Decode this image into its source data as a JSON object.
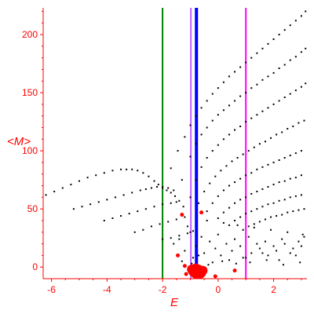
{
  "chart_data": {
    "type": "scatter",
    "xlabel": "E",
    "ylabel": "<M>",
    "xlim": [
      -6.3,
      3.2
    ],
    "ylim": [
      -10,
      223
    ],
    "x_ticks": [
      -6,
      -4,
      -2,
      0,
      2
    ],
    "y_ticks": [
      0,
      50,
      100,
      150,
      200
    ],
    "tick_labels": {
      "x": [
        "-6",
        "-4",
        "-2",
        "0",
        "2"
      ],
      "y": [
        "0",
        "50",
        "100",
        "150",
        "200"
      ]
    },
    "colors": {
      "axes": "#ff0000",
      "points": "#000000",
      "highlight_points": "#ff0000",
      "green_line": "#008000",
      "blue_line": "#0000ff",
      "magenta_line": "#ff00ff",
      "violet_line": "#c060ff"
    },
    "vertical_lines": [
      {
        "x": -2.0,
        "color": "#008000"
      },
      {
        "x": -0.98,
        "color": "#c060ff"
      },
      {
        "x": -0.78,
        "color": "#0000ff"
      },
      {
        "x": 1.0,
        "color": "#ff00ff"
      }
    ],
    "series": [
      {
        "color": "#000000",
        "x": [
          -6.2,
          -5.9,
          -5.6,
          -5.3,
          -5.0,
          -4.7,
          -4.4,
          -4.1,
          -3.8,
          -3.5,
          -3.3,
          -3.1,
          -2.9,
          -2.7,
          -2.5,
          -2.3,
          -2.15,
          -2.0,
          -1.85,
          -1.7,
          -1.55,
          -1.4,
          -1.25
        ],
        "y": [
          62,
          65,
          68,
          71,
          74,
          77,
          79,
          81,
          83,
          84,
          84,
          84,
          83,
          81,
          78,
          74,
          71,
          68,
          66,
          64,
          61,
          57,
          52
        ]
      },
      {
        "color": "#000000",
        "x": [
          -5.2,
          -4.9,
          -4.6,
          -4.3,
          -4.0,
          -3.7,
          -3.4,
          -3.1,
          -2.8,
          -2.6,
          -2.4,
          -2.2,
          -2.0,
          -1.8,
          -1.6
        ],
        "y": [
          50,
          52,
          54,
          56,
          58,
          60,
          62,
          64,
          66,
          67,
          68,
          69,
          69,
          68,
          66
        ]
      },
      {
        "color": "#000000",
        "x": [
          -4.1,
          -3.8,
          -3.5,
          -3.2,
          -2.9,
          -2.6,
          -2.3,
          -2.0,
          -1.7,
          -1.5
        ],
        "y": [
          40,
          42,
          44,
          46,
          48,
          50,
          52,
          54,
          55,
          56
        ]
      },
      {
        "color": "#000000",
        "x": [
          -3.0,
          -2.7,
          -2.4,
          -2.1,
          -1.8,
          -1.5,
          -1.2
        ],
        "y": [
          30,
          32,
          35,
          37,
          39,
          41,
          43
        ]
      },
      {
        "color": "#000000",
        "x": [
          -2.0,
          -1.7,
          -1.4,
          -1.1,
          -0.9
        ],
        "y": [
          24,
          25,
          27,
          29,
          31
        ]
      },
      {
        "color": "#000000",
        "x": [
          -1.7,
          -1.45,
          -1.2,
          -1.0,
          -0.8,
          -0.6,
          -0.4,
          -0.2,
          0.0,
          0.2,
          0.4,
          0.6,
          0.8,
          1.0,
          1.2,
          1.4,
          1.6,
          1.8,
          2.0,
          2.2,
          2.4,
          2.6,
          2.8,
          3.0,
          3.15
        ],
        "y": [
          85,
          100,
          112,
          122,
          130,
          137,
          143,
          149,
          154,
          159,
          164,
          168,
          172,
          176,
          180,
          184,
          188,
          192,
          196,
          200,
          204,
          208,
          212,
          216,
          220
        ]
      },
      {
        "color": "#000000",
        "x": [
          -1.3,
          -1.0,
          -0.8,
          -0.6,
          -0.4,
          -0.2,
          0.0,
          0.2,
          0.4,
          0.6,
          0.8,
          1.0,
          1.2,
          1.4,
          1.6,
          1.8,
          2.0,
          2.2,
          2.4,
          2.6,
          2.8,
          3.0,
          3.15
        ],
        "y": [
          75,
          95,
          106,
          114,
          120,
          126,
          131,
          135,
          139,
          143,
          147,
          150,
          154,
          157,
          161,
          164,
          167,
          171,
          174,
          178,
          181,
          185,
          188
        ]
      },
      {
        "color": "#000000",
        "x": [
          -1.0,
          -0.8,
          -0.6,
          -0.4,
          -0.2,
          0.0,
          0.2,
          0.4,
          0.6,
          0.8,
          1.0,
          1.2,
          1.4,
          1.6,
          1.8,
          2.0,
          2.2,
          2.4,
          2.6,
          2.8,
          3.0,
          3.15
        ],
        "y": [
          60,
          75,
          86,
          94,
          100,
          105,
          110,
          114,
          118,
          121,
          125,
          128,
          131,
          134,
          137,
          140,
          143,
          146,
          149,
          152,
          155,
          158
        ]
      },
      {
        "color": "#000000",
        "x": [
          -0.7,
          -0.5,
          -0.3,
          -0.1,
          0.1,
          0.3,
          0.5,
          0.7,
          0.9,
          1.1,
          1.3,
          1.5,
          1.7,
          1.9,
          2.1,
          2.3,
          2.5,
          2.7,
          2.9,
          3.1
        ],
        "y": [
          55,
          65,
          72,
          78,
          83,
          87,
          91,
          94,
          97,
          100,
          103,
          106,
          108,
          111,
          114,
          116,
          119,
          121,
          124,
          126
        ]
      },
      {
        "color": "#000000",
        "x": [
          -0.4,
          -0.2,
          0.0,
          0.2,
          0.4,
          0.6,
          0.8,
          1.0,
          1.2,
          1.4,
          1.6,
          1.8,
          2.0,
          2.2,
          2.4,
          2.6,
          2.8,
          3.0
        ],
        "y": [
          48,
          55,
          61,
          66,
          70,
          73,
          76,
          79,
          81,
          84,
          86,
          88,
          90,
          92,
          94,
          96,
          98,
          100
        ]
      },
      {
        "color": "#000000",
        "x": [
          0.0,
          0.2,
          0.4,
          0.6,
          0.8,
          1.0,
          1.2,
          1.4,
          1.6,
          1.8,
          2.0,
          2.2,
          2.4,
          2.6,
          2.8,
          3.0
        ],
        "y": [
          42,
          47,
          51,
          55,
          58,
          60,
          63,
          65,
          67,
          69,
          71,
          73,
          74,
          76,
          77,
          79
        ]
      },
      {
        "color": "#000000",
        "x": [
          0.4,
          0.6,
          0.8,
          1.0,
          1.2,
          1.4,
          1.6,
          1.8,
          2.0,
          2.2,
          2.4,
          2.6,
          2.8,
          3.0
        ],
        "y": [
          36,
          40,
          43,
          46,
          48,
          50,
          52,
          54,
          55,
          57,
          58,
          60,
          61,
          62
        ]
      },
      {
        "color": "#000000",
        "x": [
          0.9,
          1.1,
          1.3,
          1.5,
          1.7,
          1.9,
          2.1,
          2.3,
          2.5,
          2.7,
          2.9,
          3.1
        ],
        "y": [
          32,
          35,
          37,
          39,
          41,
          43,
          44,
          45,
          47,
          48,
          49,
          50
        ]
      },
      {
        "color": "#000000",
        "x": [
          -1.6,
          -1.4,
          -1.2,
          -1.0,
          -0.9,
          -0.8,
          -0.6,
          -0.5,
          -0.3,
          -0.1,
          0.0,
          0.1,
          0.3,
          0.5,
          0.6,
          0.8,
          0.9,
          1.1,
          1.2,
          1.4,
          1.5,
          1.7,
          1.8,
          2.0,
          2.1,
          2.3,
          2.4,
          2.6,
          2.7,
          2.9,
          3.0,
          3.1,
          -1.3,
          -0.7,
          -0.2,
          0.4,
          1.0,
          1.6,
          2.2,
          2.8,
          -1.1,
          -0.4,
          0.2,
          0.7,
          1.3,
          1.9,
          2.5,
          3.05,
          -0.95,
          -0.35,
          0.15,
          0.65,
          1.15,
          1.75,
          2.35,
          2.95
        ],
        "y": [
          20,
          24,
          14,
          30,
          8,
          18,
          26,
          12,
          22,
          16,
          28,
          10,
          20,
          14,
          24,
          18,
          8,
          26,
          12,
          20,
          16,
          22,
          10,
          18,
          14,
          24,
          20,
          12,
          16,
          22,
          18,
          26,
          5,
          10,
          4,
          6,
          8,
          12,
          6,
          10,
          35,
          40,
          38,
          36,
          34,
          32,
          30,
          28,
          3,
          2,
          5,
          3,
          4,
          6,
          2,
          4
        ]
      },
      {
        "color": "#ff0000",
        "x": [
          -0.9,
          -0.85,
          -0.8,
          -0.75,
          -0.7,
          -0.65,
          -0.6,
          -0.95,
          -0.55,
          -0.8,
          -0.7,
          -1.15,
          -1.2,
          -1.45,
          -1.3,
          -0.1,
          -0.6,
          0.6
        ],
        "y": [
          -4,
          -5,
          -6,
          -5,
          -4,
          -6,
          -5,
          -2,
          -3,
          -1,
          -2,
          -6,
          1,
          10,
          45,
          -8,
          47,
          -3
        ]
      }
    ]
  }
}
